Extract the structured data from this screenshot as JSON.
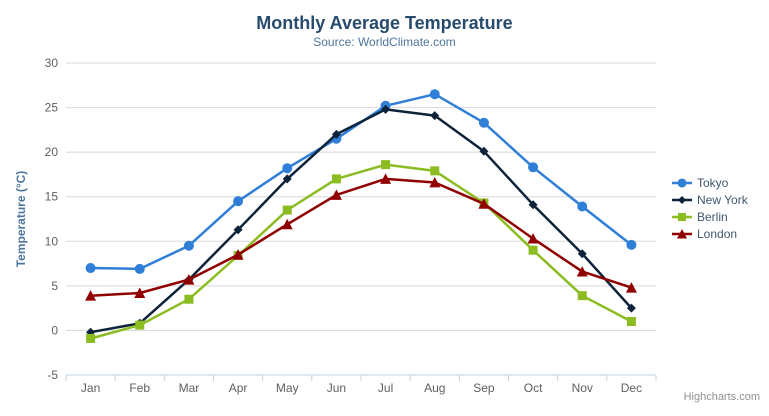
{
  "credits": {
    "label": "Highcharts.com"
  },
  "icons": {
    "context_menu": "hamburger-icon"
  },
  "colors": {
    "background": "#ffffff",
    "title_text": "#274b6d",
    "subtitle_text": "#4d759e",
    "axis_title_text": "#4d759e",
    "axis_label_text": "#606060",
    "legend_text": "#3e576f",
    "grid_line": "#d8d8d8",
    "axis_line": "#c0d0e0",
    "credits_text": "#909090",
    "menu_icon": "#666666"
  },
  "chart_data": {
    "type": "line",
    "title": "Monthly Average Temperature",
    "subtitle": "Source: WorldClimate.com",
    "categories": [
      "Jan",
      "Feb",
      "Mar",
      "Apr",
      "May",
      "Jun",
      "Jul",
      "Aug",
      "Sep",
      "Oct",
      "Nov",
      "Dec"
    ],
    "series": [
      {
        "name": "Tokyo",
        "color": "#2f7ed8",
        "marker": "circle",
        "values": [
          7.0,
          6.9,
          9.5,
          14.5,
          18.2,
          21.5,
          25.2,
          26.5,
          23.3,
          18.3,
          13.9,
          9.6
        ]
      },
      {
        "name": "New York",
        "color": "#0d233a",
        "marker": "diamond",
        "values": [
          -0.2,
          0.8,
          5.7,
          11.3,
          17.0,
          22.0,
          24.8,
          24.1,
          20.1,
          14.1,
          8.6,
          2.5
        ]
      },
      {
        "name": "Berlin",
        "color": "#8bbc21",
        "marker": "square",
        "values": [
          -0.9,
          0.6,
          3.5,
          8.4,
          13.5,
          17.0,
          18.6,
          17.9,
          14.3,
          9.0,
          3.9,
          1.0
        ]
      },
      {
        "name": "London",
        "color": "#910000",
        "marker": "triangle",
        "values": [
          3.9,
          4.2,
          5.7,
          8.5,
          11.9,
          15.2,
          17.0,
          16.6,
          14.2,
          10.3,
          6.6,
          4.8
        ]
      }
    ],
    "xlabel": "",
    "ylabel": "Temperature (°C)",
    "ylim": [
      -5,
      30
    ],
    "ytick_interval": 5,
    "grid": true,
    "legend_position": "right"
  }
}
